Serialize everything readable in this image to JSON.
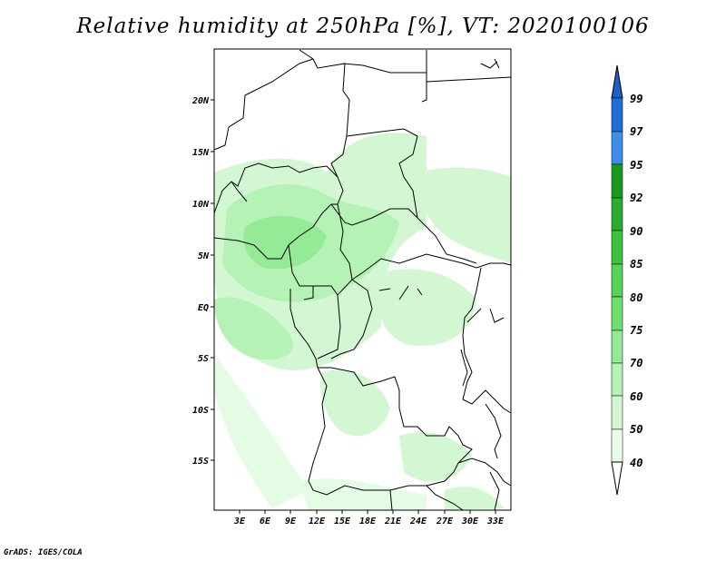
{
  "title": "Relative humidity at 250hPa [%], VT: 2020100106",
  "credit": "GrADS: IGES/COLA",
  "map": {
    "lat_labels": [
      "20N",
      "15N",
      "10N",
      "5N",
      "EQ",
      "5S",
      "10S",
      "15S"
    ],
    "lon_labels": [
      "3E",
      "6E",
      "9E",
      "12E",
      "15E",
      "18E",
      "21E",
      "24E",
      "27E",
      "30E",
      "33E"
    ]
  },
  "colorbar": {
    "labels": [
      "99",
      "97",
      "95",
      "92",
      "90",
      "85",
      "80",
      "75",
      "70",
      "60",
      "50",
      "40"
    ],
    "colors": [
      "#1f6fd6",
      "#1f6fd6",
      "#3e8ee8",
      "#1a9a1a",
      "#2cac2c",
      "#3fc23f",
      "#55d455",
      "#6ee06e",
      "#95ea95",
      "#b5f2b5",
      "#d2f7d2",
      "#eafcea"
    ],
    "top_arrow_color": "#1c5fc8",
    "bottom_arrow_color": "#ffffff"
  }
}
